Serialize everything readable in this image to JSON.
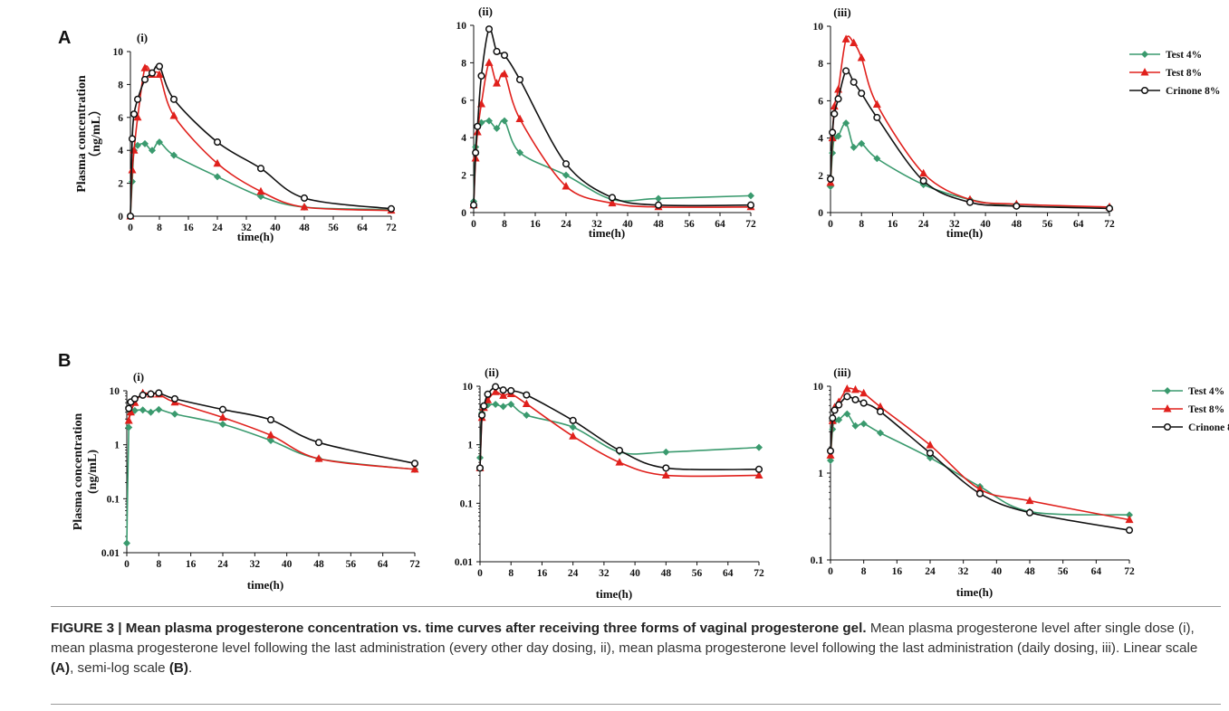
{
  "figure": {
    "caption_title": "FIGURE 3 | Mean plasma progesterone concentration vs. time curves after receiving three forms of vaginal progesterone gel.",
    "caption_line1": "Mean plasma progesterone level after single dose (i), mean plasma progesterone level following the last administration (every other day dosing, ii), mean plasma progesterone level following the last administration (daily dosing, iii). Linear scale",
    "caption_bold_a": "(A)",
    "caption_mid": ", semi-log scale",
    "caption_bold_b": "(B)",
    "caption_end": "."
  },
  "colors": {
    "test4": "#3a9a6e",
    "test8": "#e0201c",
    "crinone": "#111111"
  },
  "chart_data": [
    {
      "panel": "A",
      "subpanel": "(i)",
      "type": "line",
      "scale": "linear",
      "ylabel": "Plasma  concentration\n（ng/mL）",
      "xlabel": "time(h)",
      "xlim": [
        0,
        72
      ],
      "ylim": [
        0,
        10
      ],
      "xticks": [
        0,
        8,
        16,
        24,
        32,
        40,
        48,
        56,
        64,
        72
      ],
      "yticks": [
        0,
        2,
        4,
        6,
        8,
        10
      ],
      "series": [
        {
          "name": "Test 4%",
          "marker": "diamond",
          "x": [
            0,
            0.5,
            1,
            2,
            4,
            6,
            8,
            12,
            24,
            36,
            48,
            72
          ],
          "y": [
            0,
            2.1,
            4.0,
            4.3,
            4.4,
            4.0,
            4.5,
            3.7,
            2.4,
            1.2,
            0.55,
            0.4
          ]
        },
        {
          "name": "Test 8%",
          "marker": "triangle",
          "x": [
            0,
            0.5,
            1,
            2,
            4,
            6,
            8,
            12,
            24,
            36,
            48,
            72
          ],
          "y": [
            0,
            2.8,
            4.0,
            6.0,
            9.0,
            8.6,
            8.6,
            6.1,
            3.2,
            1.5,
            0.55,
            0.35
          ]
        },
        {
          "name": "Crinone 8%",
          "marker": "circle",
          "x": [
            0,
            0.5,
            1,
            2,
            4,
            6,
            8,
            12,
            24,
            36,
            48,
            72
          ],
          "y": [
            0,
            4.7,
            6.2,
            7.1,
            8.3,
            8.7,
            9.1,
            7.1,
            4.5,
            2.9,
            1.1,
            0.45
          ]
        }
      ]
    },
    {
      "panel": "A",
      "subpanel": "(ii)",
      "type": "line",
      "scale": "linear",
      "xlabel": "time(h)",
      "xlim": [
        0,
        72
      ],
      "ylim": [
        0,
        10
      ],
      "xticks": [
        0,
        8,
        16,
        24,
        32,
        40,
        48,
        56,
        64,
        72
      ],
      "yticks": [
        0,
        2,
        4,
        6,
        8,
        10
      ],
      "series": [
        {
          "name": "Test 4%",
          "marker": "diamond",
          "x": [
            0,
            0.5,
            1,
            2,
            4,
            6,
            8,
            12,
            24,
            36,
            48,
            72
          ],
          "y": [
            0.6,
            3.5,
            4.6,
            4.8,
            4.9,
            4.5,
            4.9,
            3.2,
            2.0,
            0.7,
            0.75,
            0.9
          ]
        },
        {
          "name": "Test 8%",
          "marker": "triangle",
          "x": [
            0,
            0.5,
            1,
            2,
            4,
            6,
            8,
            12,
            24,
            36,
            48,
            72
          ],
          "y": [
            0.4,
            2.9,
            4.3,
            5.8,
            8.0,
            6.9,
            7.4,
            5.0,
            1.4,
            0.5,
            0.3,
            0.3
          ]
        },
        {
          "name": "Crinone 8%",
          "marker": "circle",
          "x": [
            0,
            0.5,
            1,
            2,
            4,
            6,
            8,
            12,
            24,
            36,
            48,
            72
          ],
          "y": [
            0.4,
            3.2,
            4.6,
            7.3,
            9.8,
            8.6,
            8.4,
            7.1,
            2.6,
            0.8,
            0.4,
            0.4
          ]
        }
      ]
    },
    {
      "panel": "A",
      "subpanel": "(iii)",
      "type": "line",
      "scale": "linear",
      "xlabel": "time(h)",
      "xlim": [
        0,
        72
      ],
      "ylim": [
        0,
        10
      ],
      "xticks": [
        0,
        8,
        16,
        24,
        32,
        40,
        48,
        56,
        64,
        72
      ],
      "yticks": [
        0,
        2,
        4,
        6,
        8,
        10
      ],
      "series": [
        {
          "name": "Test 4%",
          "marker": "diamond",
          "x": [
            0,
            0.5,
            1,
            2,
            4,
            6,
            8,
            12,
            24,
            36,
            48,
            72
          ],
          "y": [
            1.4,
            3.2,
            4.0,
            4.1,
            4.8,
            3.5,
            3.7,
            2.9,
            1.5,
            0.7,
            0.35,
            0.3
          ]
        },
        {
          "name": "Test 8%",
          "marker": "triangle",
          "x": [
            0,
            0.5,
            1,
            2,
            4,
            6,
            8,
            12,
            24,
            36,
            48,
            72
          ],
          "y": [
            1.6,
            4.0,
            5.7,
            6.6,
            9.3,
            9.1,
            8.3,
            5.8,
            2.1,
            0.7,
            0.45,
            0.3
          ]
        },
        {
          "name": "Crinone 8%",
          "marker": "circle",
          "x": [
            0,
            0.5,
            1,
            2,
            4,
            6,
            8,
            12,
            24,
            36,
            48,
            72
          ],
          "y": [
            1.8,
            4.3,
            5.3,
            6.1,
            7.6,
            7.0,
            6.4,
            5.1,
            1.7,
            0.55,
            0.35,
            0.22
          ]
        }
      ]
    },
    {
      "panel": "B",
      "subpanel": "(i)",
      "type": "line",
      "scale": "log",
      "ylabel": "Plasma  concentration\n(ng/mL)",
      "xlabel": "time(h)",
      "xlim": [
        0,
        72
      ],
      "ylim": [
        0.01,
        10
      ],
      "xticks": [
        0,
        8,
        16,
        24,
        32,
        40,
        48,
        56,
        64,
        72
      ],
      "yticks": [
        0.01,
        0.1,
        1,
        10
      ],
      "ytick_labels": [
        "0.01",
        "0.1",
        "1",
        "10"
      ],
      "series": [
        {
          "name": "Test 4%",
          "marker": "diamond",
          "x": [
            0,
            0.5,
            1,
            2,
            4,
            6,
            8,
            12,
            24,
            36,
            48,
            72
          ],
          "y": [
            0.015,
            2.1,
            4.0,
            4.3,
            4.4,
            4.0,
            4.5,
            3.7,
            2.4,
            1.2,
            0.55,
            0.35
          ]
        },
        {
          "name": "Test 8%",
          "marker": "triangle",
          "x": [
            0.5,
            1,
            2,
            4,
            6,
            8,
            12,
            24,
            36,
            48,
            72
          ],
          "y": [
            2.8,
            4.0,
            6.0,
            9.0,
            8.6,
            8.6,
            6.1,
            3.2,
            1.5,
            0.55,
            0.35
          ]
        },
        {
          "name": "Crinone 8%",
          "marker": "circle",
          "x": [
            0.5,
            1,
            2,
            4,
            6,
            8,
            12,
            24,
            36,
            48,
            72
          ],
          "y": [
            4.7,
            6.2,
            7.1,
            8.3,
            8.7,
            9.1,
            7.1,
            4.5,
            2.9,
            1.1,
            0.45
          ]
        }
      ]
    },
    {
      "panel": "B",
      "subpanel": "(ii)",
      "type": "line",
      "scale": "log",
      "xlabel": "time(h)",
      "xlim": [
        0,
        72
      ],
      "ylim": [
        0.01,
        10
      ],
      "xticks": [
        0,
        8,
        16,
        24,
        32,
        40,
        48,
        56,
        64,
        72
      ],
      "yticks": [
        0.01,
        0.1,
        1,
        10
      ],
      "ytick_labels": [
        "0.01",
        "0.1",
        "1",
        "10"
      ],
      "series": [
        {
          "name": "Test 4%",
          "marker": "diamond",
          "x": [
            0,
            0.5,
            1,
            2,
            4,
            6,
            8,
            12,
            24,
            36,
            48,
            72
          ],
          "y": [
            0.6,
            3.5,
            4.6,
            4.8,
            4.9,
            4.5,
            4.9,
            3.2,
            2.0,
            0.75,
            0.75,
            0.9
          ]
        },
        {
          "name": "Test 8%",
          "marker": "triangle",
          "x": [
            0,
            0.5,
            1,
            2,
            4,
            6,
            8,
            12,
            24,
            36,
            48,
            72
          ],
          "y": [
            0.4,
            2.9,
            4.3,
            5.8,
            8.0,
            6.9,
            7.4,
            5.0,
            1.4,
            0.5,
            0.3,
            0.3
          ]
        },
        {
          "name": "Crinone 8%",
          "marker": "circle",
          "x": [
            0,
            0.5,
            1,
            2,
            4,
            6,
            8,
            12,
            24,
            36,
            48,
            72
          ],
          "y": [
            0.4,
            3.2,
            4.6,
            7.3,
            9.8,
            8.6,
            8.4,
            7.1,
            2.6,
            0.8,
            0.4,
            0.38
          ]
        }
      ]
    },
    {
      "panel": "B",
      "subpanel": "(iii)",
      "type": "line",
      "scale": "log",
      "xlabel": "time(h)",
      "xlim": [
        0,
        72
      ],
      "ylim": [
        0.1,
        10
      ],
      "xticks": [
        0,
        8,
        16,
        24,
        32,
        40,
        48,
        56,
        64,
        72
      ],
      "yticks": [
        0.1,
        1,
        10
      ],
      "ytick_labels": [
        "0.1",
        "1",
        "10"
      ],
      "series": [
        {
          "name": "Test 4%",
          "marker": "diamond",
          "x": [
            0,
            0.5,
            1,
            2,
            4,
            6,
            8,
            12,
            24,
            36,
            48,
            72
          ],
          "y": [
            1.4,
            3.2,
            4.0,
            4.1,
            4.8,
            3.5,
            3.7,
            2.9,
            1.5,
            0.7,
            0.36,
            0.33
          ]
        },
        {
          "name": "Test 8%",
          "marker": "triangle",
          "x": [
            0,
            0.5,
            1,
            2,
            4,
            6,
            8,
            12,
            24,
            36,
            48,
            72
          ],
          "y": [
            1.6,
            4.0,
            5.7,
            6.6,
            9.3,
            9.1,
            8.3,
            5.8,
            2.1,
            0.65,
            0.48,
            0.29
          ]
        },
        {
          "name": "Crinone 8%",
          "marker": "circle",
          "x": [
            0,
            0.5,
            1,
            2,
            4,
            6,
            8,
            12,
            24,
            36,
            48,
            72
          ],
          "y": [
            1.8,
            4.3,
            5.3,
            6.1,
            7.6,
            7.0,
            6.4,
            5.1,
            1.7,
            0.58,
            0.35,
            0.22
          ]
        }
      ]
    }
  ]
}
